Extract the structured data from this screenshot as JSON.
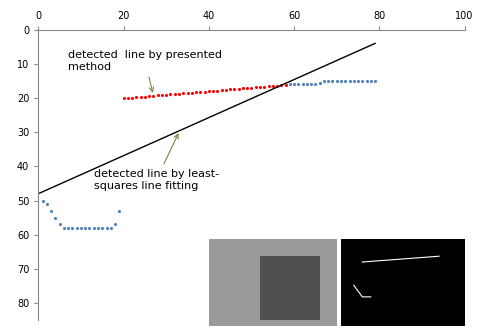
{
  "chart_data": {
    "type": "scatter",
    "xlim": [
      0,
      100
    ],
    "xticks": [
      0,
      20,
      40,
      60,
      80,
      100
    ],
    "ylim": [
      85,
      0
    ],
    "yticks": [
      0,
      10,
      20,
      30,
      40,
      50,
      60,
      70,
      80
    ],
    "grid": false,
    "series": [
      {
        "type": "scatter",
        "color": "#4f81bd",
        "marker": "dot",
        "x": [
          1,
          2,
          3,
          4,
          5,
          6,
          7,
          8,
          9,
          10,
          11,
          12,
          13,
          14,
          15,
          16,
          17,
          18,
          19
        ],
        "values": [
          50,
          51,
          53,
          55,
          57,
          58,
          58,
          58,
          58,
          58,
          58,
          58,
          58,
          58,
          58,
          58,
          58,
          57,
          53
        ]
      },
      {
        "type": "scatter",
        "color": "#4f81bd",
        "marker": "dot",
        "x": [
          59,
          60,
          61,
          62,
          63,
          64,
          65,
          66,
          67,
          68,
          69,
          70,
          71,
          72,
          73,
          74,
          75,
          76,
          77,
          78,
          79
        ],
        "values": [
          16,
          16,
          16,
          16,
          16,
          16,
          16,
          15.5,
          15,
          15,
          15,
          15,
          15,
          15,
          15,
          15,
          15,
          15,
          15,
          15,
          15
        ]
      },
      {
        "type": "scatter",
        "color": "#ff0000",
        "marker": "dot",
        "x": [
          20,
          21,
          22,
          23,
          24,
          25,
          26,
          27,
          28,
          29,
          30,
          31,
          32,
          33,
          34,
          35,
          36,
          37,
          38,
          39,
          40,
          41,
          42,
          43,
          44,
          45,
          46,
          47,
          48,
          49,
          50,
          51,
          52,
          53,
          54,
          55,
          56,
          57,
          58
        ],
        "values": [
          20,
          20,
          20,
          19.8,
          19.8,
          19.6,
          19.5,
          19.3,
          19.2,
          19,
          19,
          18.9,
          18.8,
          18.7,
          18.6,
          18.5,
          18.4,
          18.3,
          18.2,
          18.1,
          18,
          17.9,
          17.8,
          17.7,
          17.6,
          17.5,
          17.4,
          17.3,
          17.2,
          17.1,
          17,
          16.9,
          16.8,
          16.7,
          16.6,
          16.5,
          16.4,
          16.3,
          16.2
        ]
      },
      {
        "type": "line",
        "color": "#000000",
        "line_style": "solid",
        "x": [
          0,
          79
        ],
        "values": [
          48,
          4
        ]
      }
    ],
    "annotations": [
      {
        "text": "detected  line by presented\nmethod"
      },
      {
        "text": "detected line by least-\nsquares line fitting"
      }
    ]
  }
}
